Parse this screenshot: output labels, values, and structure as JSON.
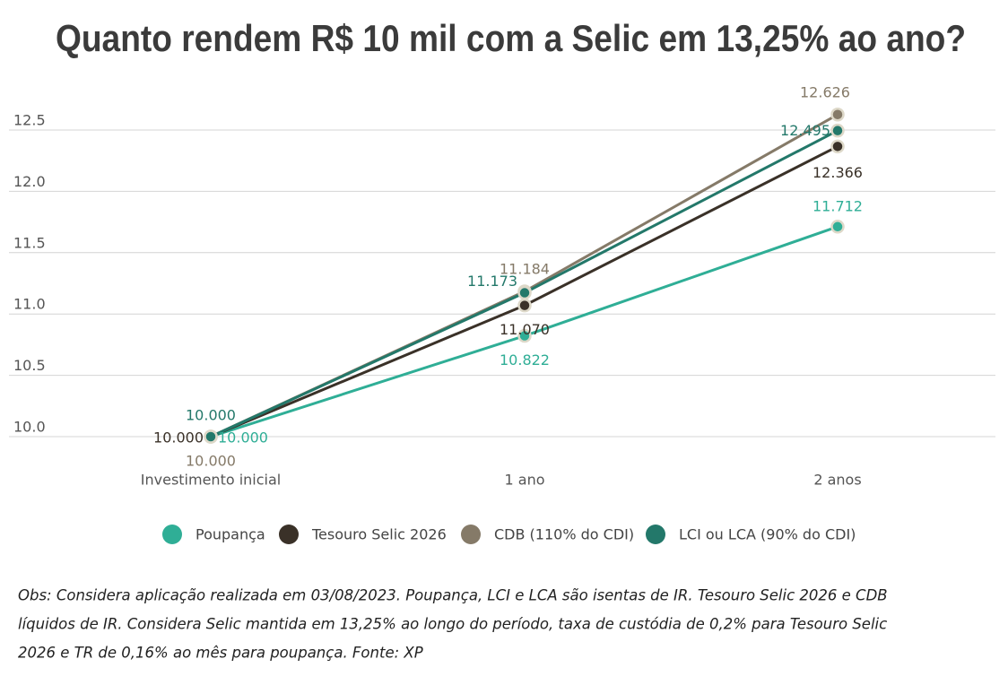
{
  "chart_data": {
    "type": "line",
    "title": "Quanto rendem R$ 10 mil com a Selic em 13,25% ao ano?",
    "categories": [
      "Investimento inicial",
      "1 ano",
      "2 anos"
    ],
    "series": [
      {
        "name": "Poupança",
        "color": "#2fae96",
        "values": [
          10.0,
          10.822,
          11.712
        ],
        "value_labels": [
          "10.000",
          "10.822",
          "11.712"
        ]
      },
      {
        "name": "Tesouro Selic 2026",
        "color": "#3a3128",
        "values": [
          10.0,
          11.07,
          12.366
        ],
        "value_labels": [
          "10.000",
          "11.070",
          "12.366"
        ]
      },
      {
        "name": "CDB (110% do CDI)",
        "color": "#857a68",
        "values": [
          10.0,
          11.184,
          12.626
        ],
        "value_labels": [
          "10.000",
          "11.184",
          "12.626"
        ]
      },
      {
        "name": "LCI ou LCA (90% do CDI)",
        "color": "#23786a",
        "values": [
          10.0,
          11.173,
          12.495
        ],
        "value_labels": [
          "10.000",
          "11.173",
          "12.495"
        ]
      }
    ],
    "ylim": [
      10,
      12.5
    ],
    "yticks": [
      {
        "value": 10,
        "label": "10.0"
      },
      10.5,
      {
        "value": 11,
        "label": "11.0"
      },
      11.5,
      {
        "value": 12,
        "label": "12.0"
      },
      12.5
    ],
    "grid": true,
    "legend": "bottom",
    "notes": [
      "Obs: Considera aplicação realizada em 03/08/2023. Poupança, LCI e LCA são isentas de IR. Tesouro Selic 2026 e CDB",
      "líquidos de IR. Considera Selic mantida em 13,25% ao longo do período, taxa de custódia de 0,2% para Tesouro Selic",
      "2026 e TR de 0,16% ao mês para poupança. Fonte: XP"
    ]
  }
}
